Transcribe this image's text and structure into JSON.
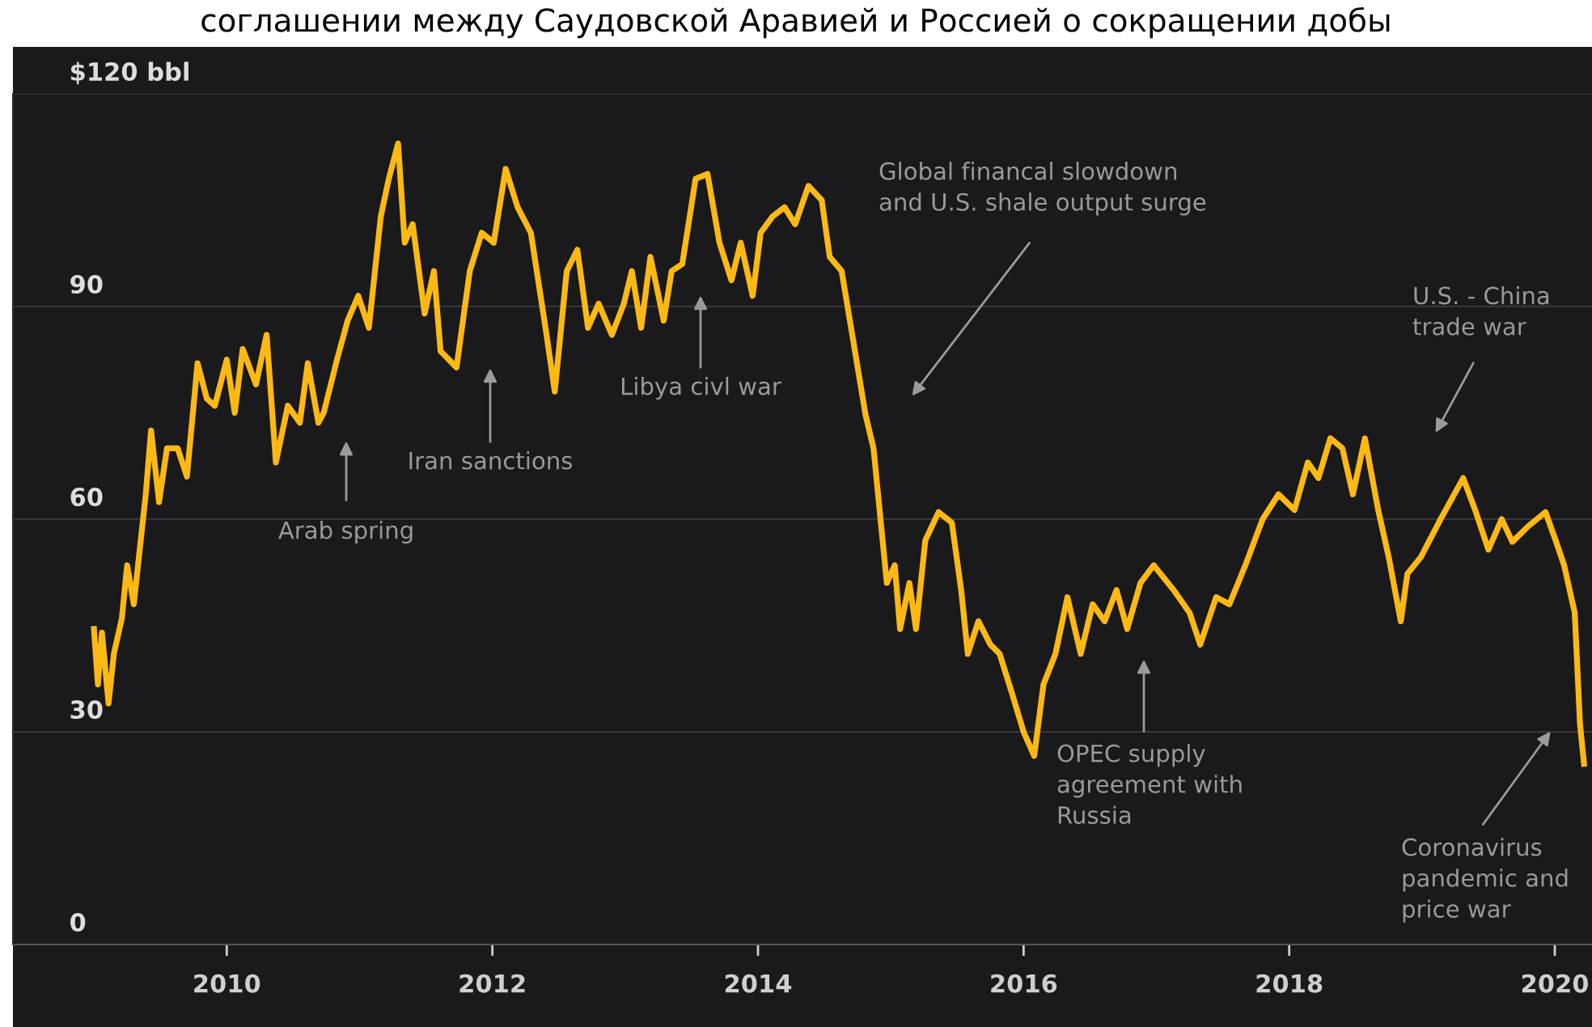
{
  "chart_data": {
    "type": "line",
    "title": "соглашении между Саудовской Аравией и Россией о сокращении добы",
    "x": [
      2009.0,
      2009.03,
      2009.06,
      2009.11,
      2009.15,
      2009.21,
      2009.25,
      2009.3,
      2009.39,
      2009.43,
      2009.49,
      2009.55,
      2009.63,
      2009.7,
      2009.78,
      2009.85,
      2009.91,
      2010.0,
      2010.06,
      2010.12,
      2010.22,
      2010.3,
      2010.37,
      2010.46,
      2010.55,
      2010.61,
      2010.69,
      2010.73,
      2010.83,
      2010.91,
      2010.99,
      2011.07,
      2011.16,
      2011.22,
      2011.29,
      2011.34,
      2011.4,
      2011.49,
      2011.56,
      2011.61,
      2011.73,
      2011.83,
      2011.92,
      2012.01,
      2012.1,
      2012.19,
      2012.29,
      2012.4,
      2012.47,
      2012.56,
      2012.64,
      2012.72,
      2012.8,
      2012.9,
      2012.99,
      2013.05,
      2013.12,
      2013.19,
      2013.29,
      2013.35,
      2013.43,
      2013.53,
      2013.62,
      2013.71,
      2013.8,
      2013.87,
      2013.96,
      2014.02,
      2014.11,
      2014.2,
      2014.28,
      2014.38,
      2014.48,
      2014.54,
      2014.63,
      2014.71,
      2014.81,
      2014.87,
      2014.97,
      2015.03,
      2015.07,
      2015.14,
      2015.19,
      2015.26,
      2015.36,
      2015.46,
      2015.53,
      2015.58,
      2015.66,
      2015.75,
      2015.82,
      2015.91,
      2016.0,
      2016.08,
      2016.15,
      2016.24,
      2016.33,
      2016.43,
      2016.52,
      2016.61,
      2016.7,
      2016.78,
      2016.88,
      2016.98,
      2017.13,
      2017.25,
      2017.33,
      2017.45,
      2017.55,
      2017.67,
      2017.8,
      2017.92,
      2018.04,
      2018.14,
      2018.22,
      2018.31,
      2018.4,
      2018.48,
      2018.57,
      2018.67,
      2018.75,
      2018.84,
      2018.89,
      2018.99,
      2019.14,
      2019.31,
      2019.4,
      2019.5,
      2019.6,
      2019.68,
      2019.8,
      2019.93,
      2020.01,
      2020.07,
      2020.15,
      2020.19,
      2020.22
    ],
    "series": [
      {
        "color": "#fdb913",
        "values": [
          44.5,
          36.7,
          44,
          34,
          41,
          46,
          53.5,
          48,
          63.5,
          72.5,
          62.4,
          70,
          70,
          66,
          82,
          77,
          76,
          82.5,
          75,
          84,
          79,
          86,
          68,
          76,
          73.6,
          82,
          73.6,
          75,
          82.5,
          88,
          91.5,
          87,
          102.7,
          108,
          113,
          99,
          101.6,
          89,
          95,
          83.7,
          81.4,
          95,
          100.4,
          99,
          109.4,
          104,
          100.4,
          87,
          78,
          95,
          98,
          87,
          90.4,
          86,
          90.4,
          95,
          87,
          97,
          88,
          95,
          96,
          108,
          108.7,
          99,
          93.7,
          99,
          91.5,
          100.4,
          102.7,
          104,
          101.6,
          107,
          105,
          97,
          95,
          86,
          74.7,
          70,
          51,
          53.5,
          44.5,
          51,
          44.5,
          57,
          61,
          59.5,
          50,
          41,
          45.6,
          42.3,
          41,
          35.6,
          30,
          26.6,
          36.7,
          41,
          49,
          41,
          48,
          45.6,
          50,
          44.5,
          51,
          53.5,
          50,
          46.8,
          42.3,
          49,
          48,
          53.5,
          60,
          63.5,
          61.3,
          68,
          65.8,
          71.4,
          70,
          63.5,
          71.4,
          61.3,
          54.6,
          45.6,
          52.3,
          54.6,
          60,
          65.8,
          61.3,
          55.7,
          60,
          56.8,
          59,
          61,
          56.8,
          53.5,
          46.8,
          31,
          25.5
        ]
      }
    ],
    "xlim": [
      2008.39,
      2020.28
    ],
    "xticks": [
      2010,
      2012,
      2014,
      2016,
      2018,
      2020
    ],
    "ylim": [
      0,
      120
    ],
    "yticks": [
      0,
      30,
      60,
      90,
      {
        "value": 120,
        "label": "$120 bbl"
      }
    ],
    "grid": "y",
    "annotations": [
      "Arab spring",
      "Iran sanctions",
      "Libya civl war",
      "Global financal slowdown\nand U.S. shale output surge",
      "OPEC supply\nagreement with\nRussia",
      "U.S. - China\ntrade war",
      "Coronavirus\npandemic and\nprice war"
    ]
  }
}
